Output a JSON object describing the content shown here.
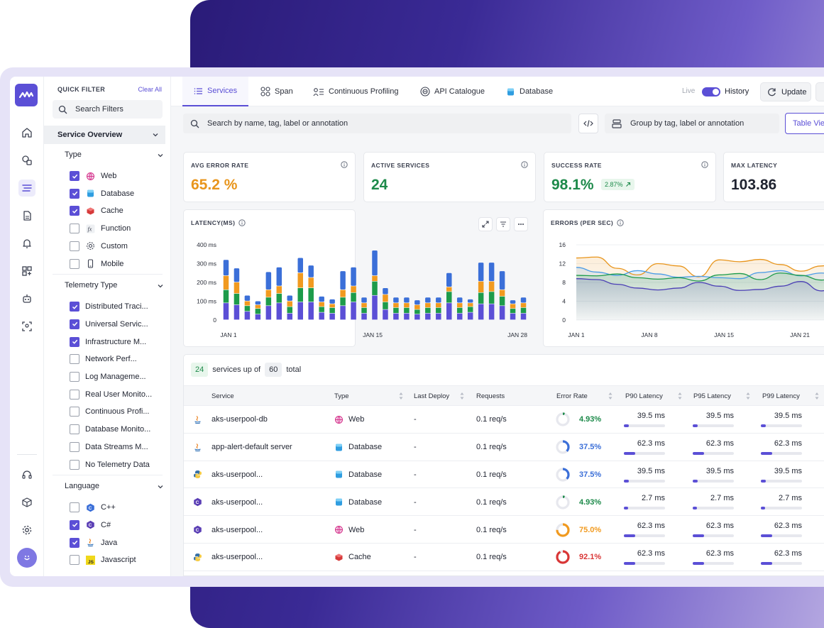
{
  "filters": {
    "quick_filter_label": "QUICK FILTER",
    "clear_all": "Clear All",
    "search_placeholder": "Search Filters",
    "section_title": "Service Overview",
    "groups": [
      {
        "title": "Type",
        "items": [
          {
            "label": "Web",
            "checked": true,
            "icon": "globe-icon"
          },
          {
            "label": "Database",
            "checked": true,
            "icon": "database-icon"
          },
          {
            "label": "Cache",
            "checked": true,
            "icon": "cube-icon"
          },
          {
            "label": "Function",
            "checked": false,
            "icon": "function-icon"
          },
          {
            "label": "Custom",
            "checked": false,
            "icon": "gear-icon"
          },
          {
            "label": "Mobile",
            "checked": false,
            "icon": "mobile-icon"
          }
        ]
      },
      {
        "title": "Telemetry Type",
        "items": [
          {
            "label": "Distributed Traci...",
            "checked": true
          },
          {
            "label": "Universal Servic...",
            "checked": true
          },
          {
            "label": "Infrastructure M...",
            "checked": true
          },
          {
            "label": "Network Perf...",
            "checked": false
          },
          {
            "label": "Log Manageme...",
            "checked": false
          },
          {
            "label": "Real User Monito...",
            "checked": false
          },
          {
            "label": "Continuous Profi...",
            "checked": false
          },
          {
            "label": "Database Monito...",
            "checked": false
          },
          {
            "label": "Data Streams M...",
            "checked": false
          },
          {
            "label": "No Telemetry Data",
            "checked": false
          }
        ]
      },
      {
        "title": "Language",
        "items": [
          {
            "label": "C++",
            "checked": false,
            "icon": "cpp-icon"
          },
          {
            "label": "C#",
            "checked": true,
            "icon": "csharp-icon"
          },
          {
            "label": "Java",
            "checked": true,
            "icon": "java-icon"
          },
          {
            "label": "Javascript",
            "checked": false,
            "icon": "javascript-icon"
          }
        ]
      }
    ]
  },
  "tabs": [
    {
      "label": "Services",
      "icon": "list-icon",
      "active": true
    },
    {
      "label": "Span",
      "icon": "span-icon",
      "active": false
    },
    {
      "label": "Continuous Profiling",
      "icon": "profiling-icon",
      "active": false
    },
    {
      "label": "API Catalogue",
      "icon": "api-icon",
      "active": false
    },
    {
      "label": "Database",
      "icon": "database-icon",
      "active": false
    }
  ],
  "header": {
    "live_label": "Live",
    "history_label": "History",
    "update_label": "Update"
  },
  "search": {
    "placeholder": "Search by name, tag, label or annotation",
    "group_placeholder": "Group by tag, label or annotation",
    "table_view_label": "Table View"
  },
  "kpis": [
    {
      "label": "AVG ERROR RATE",
      "value": "65.2 %",
      "color": "#e8951c"
    },
    {
      "label": "ACTIVE SERVICES",
      "value": "24",
      "color": "#1d8a4a"
    },
    {
      "label": "SUCCESS RATE",
      "value": "98.1%",
      "color": "#1d8a4a",
      "badge": "2.87%"
    },
    {
      "label": "MAX LATENCY",
      "value": "103.86",
      "color": "#1f2330"
    }
  ],
  "latency_chart": {
    "title": "LATENCY(MS)",
    "y_ticks": [
      "400 ms",
      "300 ms",
      "200 ms",
      "100 ms",
      "0"
    ],
    "x_ticks": [
      "JAN 1",
      "JAN 15",
      "JAN 28"
    ]
  },
  "errors_chart": {
    "title": "ERRORS (PER SEC)",
    "y_ticks": [
      "16",
      "12",
      "8",
      "4",
      "0"
    ],
    "x_ticks": [
      "JAN 1",
      "JAN 8",
      "JAN 15",
      "JAN 21"
    ]
  },
  "chart_data": [
    {
      "type": "bar",
      "title": "LATENCY(MS)",
      "stacked": true,
      "ylim": [
        0,
        400
      ],
      "x_tick_labels": [
        "JAN 1",
        "JAN 15",
        "JAN 28"
      ],
      "series": [
        {
          "color": "#5b4fd6",
          "values": [
            90,
            80,
            45,
            30,
            75,
            90,
            35,
            95,
            95,
            40,
            35,
            75,
            95,
            35,
            130,
            55,
            35,
            35,
            30,
            35,
            35,
            90,
            35,
            40,
            85,
            85,
            75,
            35,
            35
          ]
        },
        {
          "color": "#1d9b4a",
          "values": [
            70,
            60,
            30,
            30,
            45,
            50,
            35,
            75,
            75,
            30,
            30,
            45,
            50,
            30,
            75,
            40,
            30,
            30,
            25,
            30,
            30,
            60,
            30,
            30,
            60,
            65,
            50,
            25,
            30
          ]
        },
        {
          "color": "#f19a1f",
          "values": [
            75,
            60,
            25,
            20,
            40,
            40,
            30,
            80,
            55,
            25,
            20,
            40,
            35,
            25,
            30,
            40,
            25,
            25,
            25,
            25,
            25,
            25,
            25,
            20,
            60,
            55,
            35,
            25,
            25
          ]
        },
        {
          "color": "#3b6fd8",
          "values": [
            85,
            75,
            30,
            20,
            95,
            100,
            30,
            80,
            65,
            30,
            25,
            100,
            100,
            30,
            135,
            35,
            30,
            30,
            25,
            30,
            30,
            75,
            30,
            20,
            100,
            100,
            100,
            20,
            30
          ]
        }
      ]
    },
    {
      "type": "line",
      "title": "ERRORS (PER SEC)",
      "ylim": [
        0,
        16
      ],
      "x_tick_labels": [
        "JAN 1",
        "JAN 8",
        "JAN 15",
        "JAN 21"
      ],
      "series": [
        {
          "color": "#e8951c",
          "values": [
            13.2,
            13.4,
            11,
            9.6,
            12,
            11.5,
            9.2,
            12.8,
            12.4,
            12.9,
            11.8,
            10.4,
            11.5,
            12.8
          ]
        },
        {
          "color": "#4a9be6",
          "values": [
            11.2,
            10.2,
            9.5,
            10.5,
            9.8,
            9.1,
            9.3,
            9,
            8.8,
            10.1,
            10.5,
            9.4,
            10,
            9.6
          ]
        },
        {
          "color": "#1d9b4a",
          "values": [
            9.5,
            9.4,
            9.8,
            9,
            8.7,
            9,
            8.3,
            9.6,
            9.9,
            8.6,
            10,
            9.5,
            8.5,
            9.5
          ]
        },
        {
          "color": "#4b3fb5",
          "values": [
            8.8,
            8.6,
            7.6,
            6.8,
            6.4,
            6.8,
            8,
            7.2,
            6.3,
            6.5,
            7.2,
            8.2,
            6.2,
            8.4
          ]
        }
      ]
    }
  ],
  "table": {
    "count": "24",
    "count_text": "services up of",
    "total": "60",
    "total_text": "total",
    "columns": [
      "Service",
      "Type",
      "Last Deploy",
      "Requests",
      "Error Rate",
      "P90 Latency",
      "P95 Latency",
      "P99 Latency"
    ],
    "rows": [
      {
        "lang_icon": "java-icon",
        "service": "aks-userpool-db",
        "type_icon": "globe-icon",
        "type": "Web",
        "deploy": "-",
        "requests": "0.1 req/s",
        "error": "4.93%",
        "error_frac": 0.0493,
        "error_color": "#1d8a4a",
        "p90": "39.5 ms",
        "p95": "39.5 ms",
        "p99": "39.5 ms",
        "lat_frac": 0.12
      },
      {
        "lang_icon": "java-icon",
        "service": "app-alert-default server",
        "type_icon": "database-icon",
        "type": "Database",
        "deploy": "-",
        "requests": "0.1 req/s",
        "error": "37.5%",
        "error_frac": 0.375,
        "error_color": "#3b6fd8",
        "p90": "62.3 ms",
        "p95": "62.3 ms",
        "p99": "62.3 ms",
        "lat_frac": 0.28
      },
      {
        "lang_icon": "python-icon",
        "service": "aks-userpool...",
        "type_icon": "database-icon",
        "type": "Database",
        "deploy": "-",
        "requests": "0.1 req/s",
        "error": "37.5%",
        "error_frac": 0.375,
        "error_color": "#3b6fd8",
        "p90": "39.5 ms",
        "p95": "39.5 ms",
        "p99": "39.5 ms",
        "lat_frac": 0.12
      },
      {
        "lang_icon": "csharp-icon",
        "service": "aks-userpool...",
        "type_icon": "database-icon",
        "type": "Database",
        "deploy": "-",
        "requests": "0.1 req/s",
        "error": "4.93%",
        "error_frac": 0.0493,
        "error_color": "#1d8a4a",
        "p90": "2.7 ms",
        "p95": "2.7 ms",
        "p99": "2.7 ms",
        "lat_frac": 0.1
      },
      {
        "lang_icon": "csharp-icon",
        "service": "aks-userpool...",
        "type_icon": "globe-icon",
        "type": "Web",
        "deploy": "-",
        "requests": "0.1 req/s",
        "error": "75.0%",
        "error_frac": 0.75,
        "error_color": "#f19a1f",
        "p90": "62.3 ms",
        "p95": "62.3 ms",
        "p99": "62.3 ms",
        "lat_frac": 0.28
      },
      {
        "lang_icon": "python-icon",
        "service": "aks-userpool...",
        "type_icon": "cube-icon",
        "type": "Cache",
        "deploy": "-",
        "requests": "0.1 req/s",
        "error": "92.1%",
        "error_frac": 0.921,
        "error_color": "#d93636",
        "p90": "62.3 ms",
        "p95": "62.3 ms",
        "p99": "62.3 ms",
        "lat_frac": 0.28
      }
    ]
  }
}
